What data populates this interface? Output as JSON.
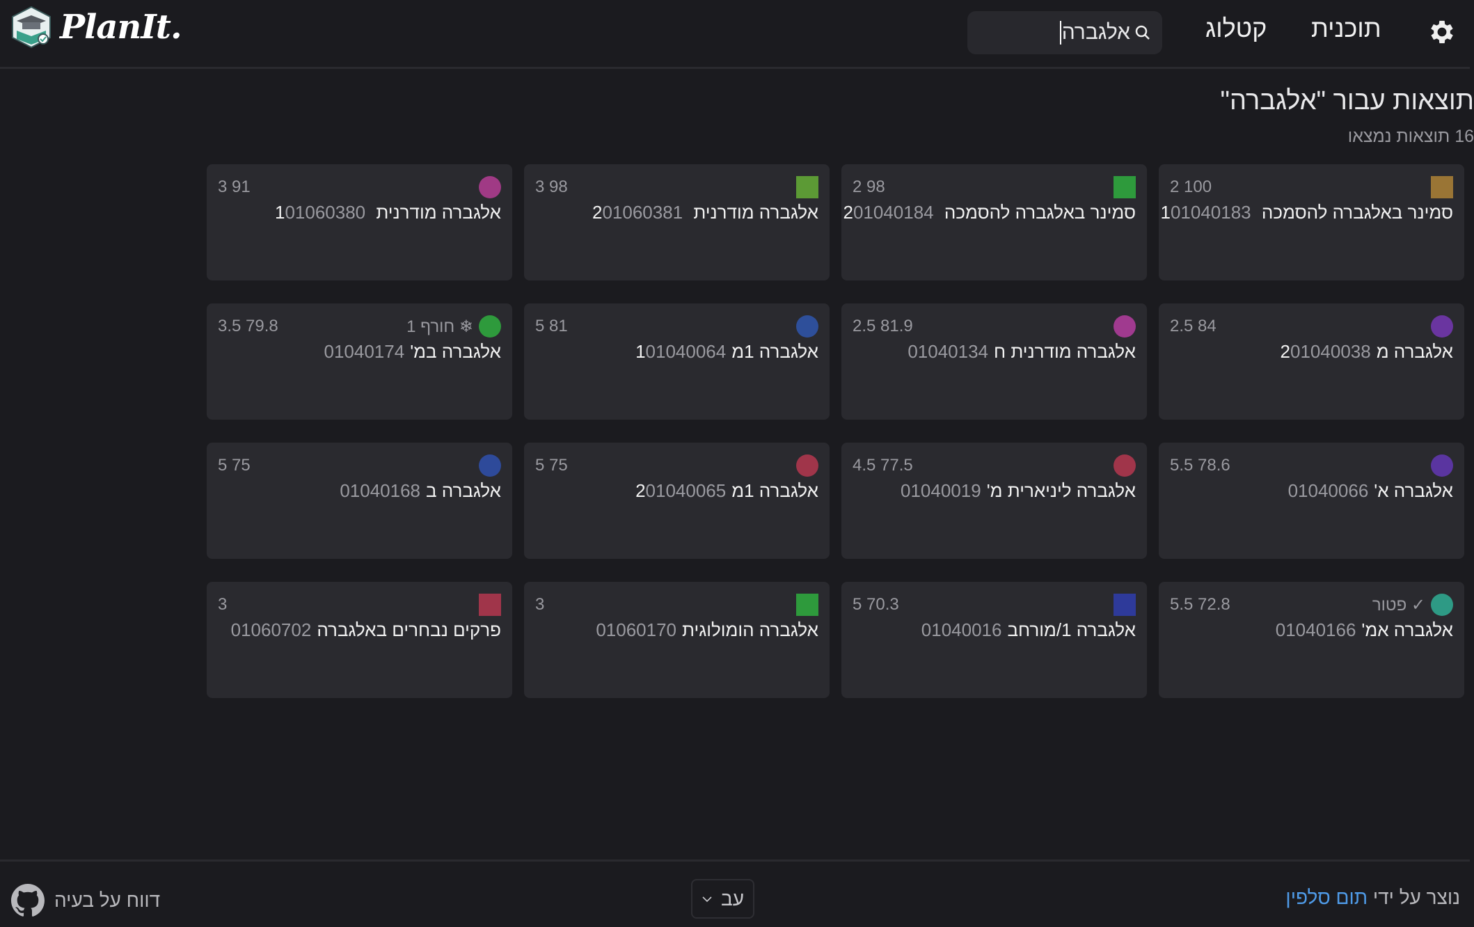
{
  "header": {
    "logo_text": "PlanIt.",
    "search": {
      "value": "אלגברה"
    },
    "nav": [
      {
        "label": "קטלוג"
      },
      {
        "label": "תוכנית"
      }
    ],
    "settings_icon": "gear-icon"
  },
  "results": {
    "title": "תוצאות עבור \"אלגברה\"",
    "count_text": "16 תוצאות נמצאו",
    "courses": [
      {
        "name": "סמינר באלגברה להסמכה 1",
        "number": "01040183",
        "meta": "2 100",
        "color": "#9a7535",
        "shape": "square",
        "tag": ""
      },
      {
        "name": "סמינר באלגברה להסמכה 2",
        "number": "01040184",
        "meta": "2 98",
        "color": "#2e9a3c",
        "shape": "square",
        "tag": ""
      },
      {
        "name": "אלגברה מודרנית 2",
        "number": "01060381",
        "meta": "3 98",
        "color": "#5c9a35",
        "shape": "square",
        "tag": ""
      },
      {
        "name": "אלגברה מודרנית 1",
        "number": "01060380",
        "meta": "3 91",
        "color": "#a03a85",
        "shape": "circle",
        "tag": ""
      },
      {
        "name": "אלגברה מ2",
        "number": "01040038",
        "meta": "2.5 84",
        "color": "#6a35a0",
        "shape": "circle",
        "tag": ""
      },
      {
        "name": "אלגברה מודרנית ח",
        "number": "01040134",
        "meta": "2.5 81.9",
        "color": "#a03a8f",
        "shape": "circle",
        "tag": ""
      },
      {
        "name": "אלגברה 1מ1",
        "number": "01040064",
        "meta": "5 81",
        "color": "#2e4f9a",
        "shape": "circle",
        "tag": ""
      },
      {
        "name": "אלגברה במ'",
        "number": "01040174",
        "meta": "3.5 79.8",
        "color": "#2e9a3c",
        "shape": "circle",
        "tag": "❄ חורף 1"
      },
      {
        "name": "אלגברה א'",
        "number": "01040066",
        "meta": "5.5 78.6",
        "color": "#5a35a0",
        "shape": "circle",
        "tag": ""
      },
      {
        "name": "אלגברה ליניארית מ'",
        "number": "01040019",
        "meta": "4.5 77.5",
        "color": "#a0354a",
        "shape": "circle",
        "tag": ""
      },
      {
        "name": "אלגברה 1מ2",
        "number": "01040065",
        "meta": "5 75",
        "color": "#a0354a",
        "shape": "circle",
        "tag": ""
      },
      {
        "name": "אלגברה ב",
        "number": "01040168",
        "meta": "5 75",
        "color": "#2e4a9a",
        "shape": "circle",
        "tag": ""
      },
      {
        "name": "אלגברה אמ'",
        "number": "01040166",
        "meta": "5.5 72.8",
        "color": "#2e9a85",
        "shape": "circle",
        "tag": "✓ פטור"
      },
      {
        "name": "אלגברה 1/מורחב",
        "number": "01040016",
        "meta": "5 70.3",
        "color": "#2e3a9a",
        "shape": "square",
        "tag": ""
      },
      {
        "name": "אלגברה הומולוגית",
        "number": "01060170",
        "meta": "3",
        "color": "#2e9a3c",
        "shape": "square",
        "tag": ""
      },
      {
        "name": "פרקים נבחרים באלגברה",
        "number": "01060702",
        "meta": "3",
        "color": "#a0354a",
        "shape": "square",
        "tag": ""
      }
    ]
  },
  "footer": {
    "report_issue": "דווח על בעיה",
    "language": "עב",
    "credit_prefix": "נוצר על ידי",
    "credit_author": "תום סלפין",
    "link_color": "#4f9be8"
  }
}
